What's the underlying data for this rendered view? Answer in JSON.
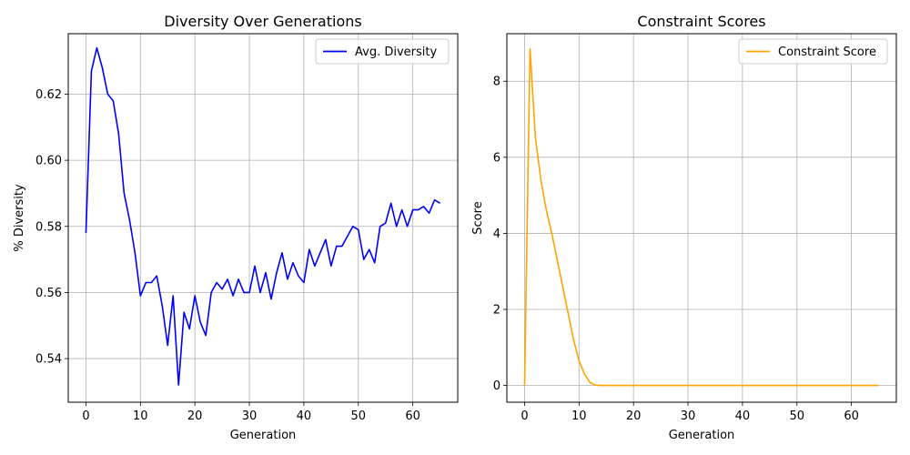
{
  "chart_data": [
    {
      "type": "line",
      "title": "Diversity Over Generations",
      "xlabel": "Generation",
      "ylabel": "% Diversity",
      "xlim": [
        -3.25,
        68.25
      ],
      "ylim": [
        0.5268,
        0.6383
      ],
      "xticks": [
        0,
        10,
        20,
        30,
        40,
        50,
        60
      ],
      "yticks": [
        0.54,
        0.56,
        0.58,
        0.6,
        0.62
      ],
      "ytick_labels": [
        "0.54",
        "0.56",
        "0.58",
        "0.60",
        "0.62"
      ],
      "grid": true,
      "legend_position": "top-right",
      "series": [
        {
          "name": "Avg. Diversity",
          "color": "#0000ff",
          "x": [
            0,
            1,
            2,
            3,
            4,
            5,
            6,
            7,
            8,
            9,
            10,
            11,
            12,
            13,
            14,
            15,
            16,
            17,
            18,
            19,
            20,
            21,
            22,
            23,
            24,
            25,
            26,
            27,
            28,
            29,
            30,
            31,
            32,
            33,
            34,
            35,
            36,
            37,
            38,
            39,
            40,
            41,
            42,
            43,
            44,
            45,
            46,
            47,
            48,
            49,
            50,
            51,
            52,
            53,
            54,
            55,
            56,
            57,
            58,
            59,
            60,
            61,
            62,
            63,
            64,
            65
          ],
          "y": [
            0.578,
            0.627,
            0.634,
            0.628,
            0.62,
            0.618,
            0.608,
            0.59,
            0.582,
            0.572,
            0.559,
            0.563,
            0.563,
            0.565,
            0.556,
            0.544,
            0.559,
            0.532,
            0.554,
            0.549,
            0.559,
            0.551,
            0.547,
            0.56,
            0.563,
            0.561,
            0.564,
            0.559,
            0.564,
            0.56,
            0.56,
            0.568,
            0.56,
            0.566,
            0.558,
            0.566,
            0.572,
            0.564,
            0.569,
            0.565,
            0.563,
            0.573,
            0.568,
            0.572,
            0.576,
            0.568,
            0.574,
            0.574,
            0.577,
            0.58,
            0.579,
            0.57,
            0.573,
            0.569,
            0.58,
            0.581,
            0.587,
            0.58,
            0.585,
            0.58,
            0.585,
            0.585,
            0.586,
            0.584,
            0.588,
            0.587
          ]
        }
      ]
    },
    {
      "type": "line",
      "title": "Constraint Scores",
      "xlabel": "Generation",
      "ylabel": "Score",
      "xlim": [
        -3.25,
        68.25
      ],
      "ylim": [
        -0.44,
        9.25
      ],
      "xticks": [
        0,
        10,
        20,
        30,
        40,
        50,
        60
      ],
      "yticks": [
        0,
        2,
        4,
        6,
        8
      ],
      "ytick_labels": [
        "0",
        "2",
        "4",
        "6",
        "8"
      ],
      "grid": true,
      "legend_position": "top-right",
      "series": [
        {
          "name": "Constraint Score",
          "color": "#ffa500",
          "x": [
            0,
            1,
            2,
            3,
            4,
            5,
            6,
            7,
            8,
            9,
            10,
            11,
            12,
            13,
            14,
            15,
            20,
            30,
            40,
            50,
            60,
            65
          ],
          "y": [
            0.0,
            8.85,
            6.5,
            5.4,
            4.6,
            4.0,
            3.3,
            2.6,
            1.9,
            1.2,
            0.65,
            0.3,
            0.08,
            0.01,
            0.0,
            0.0,
            0.0,
            0.0,
            0.0,
            0.0,
            0.0,
            0.0
          ]
        }
      ]
    }
  ]
}
